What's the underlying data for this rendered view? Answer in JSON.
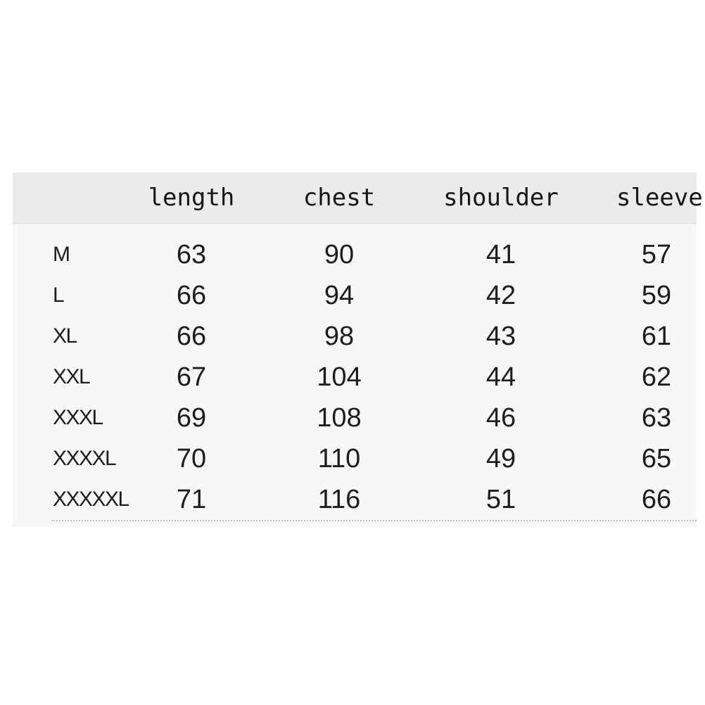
{
  "chart_data": {
    "type": "table",
    "title": "",
    "columns": [
      "size",
      "length",
      "chest",
      "shoulder",
      "sleeve"
    ],
    "header_labels": {
      "size": "",
      "length": "length",
      "chest": "chest",
      "shoulder": "shoulder",
      "sleeve": "sleeve"
    },
    "rows": [
      {
        "size": "M",
        "length": "63",
        "chest": "90",
        "shoulder": "41",
        "sleeve": "57"
      },
      {
        "size": "L",
        "length": "66",
        "chest": "94",
        "shoulder": "42",
        "sleeve": "59"
      },
      {
        "size": "XL",
        "length": "66",
        "chest": "98",
        "shoulder": "43",
        "sleeve": "61"
      },
      {
        "size": "XXL",
        "length": "67",
        "chest": "104",
        "shoulder": "44",
        "sleeve": "62"
      },
      {
        "size": "XXXL",
        "length": "69",
        "chest": "108",
        "shoulder": "46",
        "sleeve": "63"
      },
      {
        "size": "XXXXL",
        "length": "70",
        "chest": "110",
        "shoulder": "49",
        "sleeve": "65"
      },
      {
        "size": "XXXXXL",
        "length": "71",
        "chest": "116",
        "shoulder": "51",
        "sleeve": "66"
      }
    ],
    "layout": {
      "grid": "off",
      "header_background": true,
      "bottom_border": "dotted"
    }
  },
  "colors": {
    "page_bg": "#ffffff",
    "header_bg": "#ebebeb",
    "body_bg": "#f7f7f7",
    "text": "#1a1a1a",
    "divider": "#c8c8c8"
  }
}
